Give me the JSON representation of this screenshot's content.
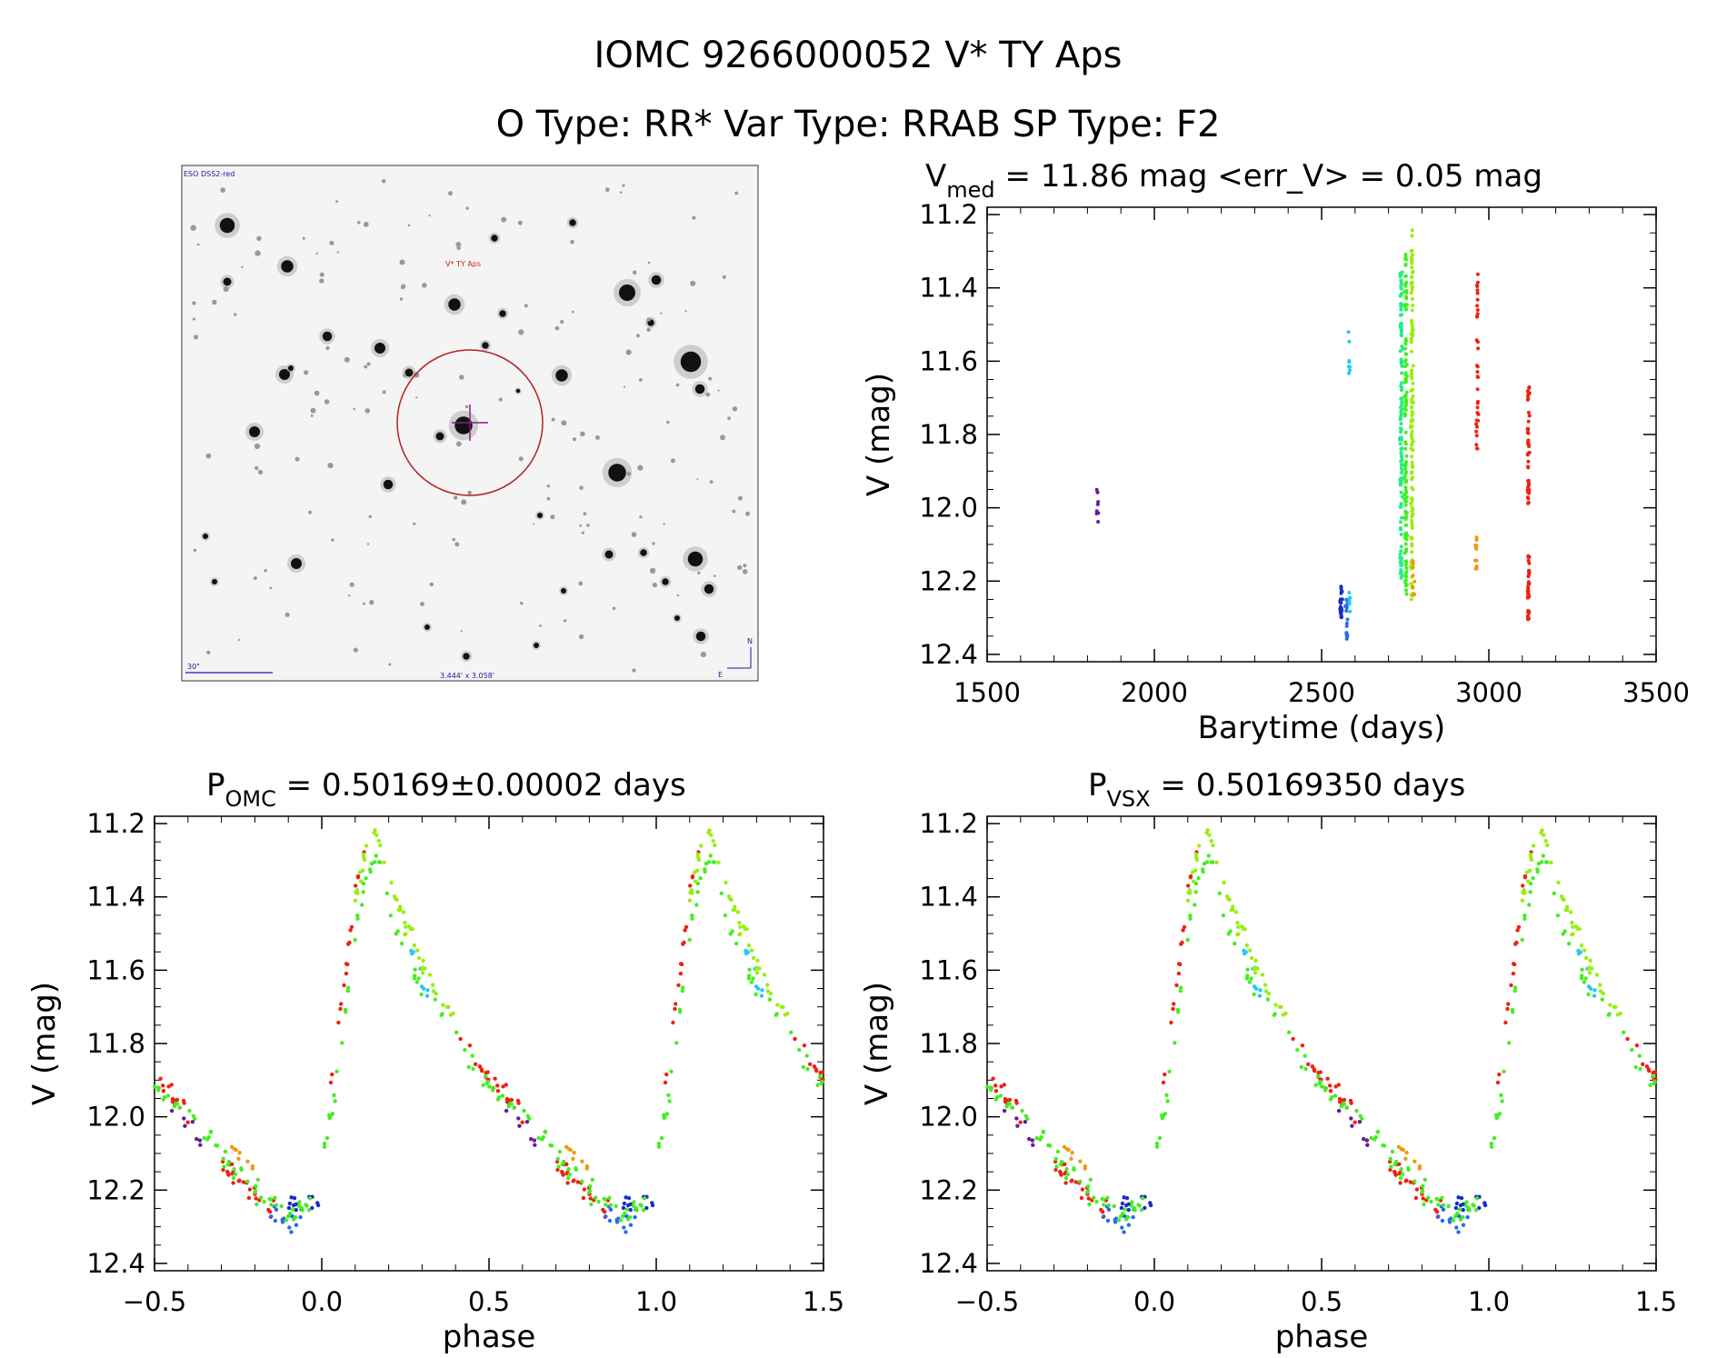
{
  "header": {
    "title_line1": "IOMC 9266000052    V* TY Aps",
    "title_line2": "O Type: RR*  Var Type: RRAB  SP Type: F2"
  },
  "finder": {
    "survey_label": "ESO DSS2-red",
    "target_label": "V* TY Aps",
    "scale_label": "30\"",
    "fov_label": "3.444' x 3.058'",
    "north_label": "N",
    "east_label": "E",
    "palette": {
      "star": "#111111",
      "circle": "#b22222",
      "cross": "#8b1a8b",
      "text": "#1a1aa0",
      "target_text": "#cc2222"
    }
  },
  "chart_data": [
    {
      "id": "lightcurve-time",
      "type": "scatter",
      "title_prefix": "V",
      "title_sub": "med",
      "title_suffix": " = 11.86 mag <err_V> = 0.05 mag",
      "xlabel": "Barytime (days)",
      "ylabel": "V (mag)",
      "xlim": [
        1500,
        3500
      ],
      "ylim": [
        12.42,
        11.18
      ],
      "xticks": [
        1500,
        2000,
        2500,
        3000,
        3500
      ],
      "xtick_labels": [
        "1500",
        "2000",
        "2500",
        "3000",
        "3500"
      ],
      "yticks": [
        11.2,
        11.4,
        11.6,
        11.8,
        12.0,
        12.2,
        12.4
      ],
      "ytick_labels": [
        "11.2",
        "11.4",
        "11.6",
        "11.8",
        "12.0",
        "12.2",
        "12.4"
      ],
      "clusters": [
        {
          "t": 1830,
          "v_min": 11.95,
          "v_max": 12.06,
          "n": 10,
          "color": "#6a1a9a"
        },
        {
          "t": 2558,
          "v_min": 12.2,
          "v_max": 12.3,
          "n": 22,
          "color": "#1a2acc"
        },
        {
          "t": 2575,
          "v_min": 12.24,
          "v_max": 12.36,
          "n": 16,
          "color": "#2a6aee"
        },
        {
          "t": 2582,
          "v_min": 11.52,
          "v_max": 11.64,
          "n": 8,
          "color": "#22ccee"
        },
        {
          "t": 2584,
          "v_min": 12.23,
          "v_max": 12.29,
          "n": 8,
          "color": "#22ccee"
        },
        {
          "t": 2738,
          "v_min": 11.35,
          "v_max": 12.21,
          "n": 120,
          "color": "#22ee88"
        },
        {
          "t": 2752,
          "v_min": 11.28,
          "v_max": 12.24,
          "n": 130,
          "color": "#44ee22"
        },
        {
          "t": 2770,
          "v_min": 11.24,
          "v_max": 12.26,
          "n": 130,
          "color": "#99ee11"
        },
        {
          "t": 2775,
          "v_min": 12.14,
          "v_max": 12.24,
          "n": 10,
          "color": "#ee9911"
        },
        {
          "t": 2962,
          "v_min": 12.08,
          "v_max": 12.17,
          "n": 14,
          "color": "#ee9911"
        },
        {
          "t": 2965,
          "v_min": 11.35,
          "v_max": 11.85,
          "n": 35,
          "color": "#ee2211"
        },
        {
          "t": 3118,
          "v_min": 11.66,
          "v_max": 12.0,
          "n": 45,
          "color": "#ee2211"
        },
        {
          "t": 3118,
          "v_min": 12.13,
          "v_max": 12.31,
          "n": 35,
          "color": "#ee2211"
        }
      ]
    },
    {
      "id": "phased-omc",
      "type": "scatter",
      "title_prefix": "P",
      "title_sub": "OMC",
      "title_suffix": " = 0.50169±0.00002 days",
      "xlabel": "phase",
      "ylabel": "V (mag)",
      "xlim": [
        -0.5,
        1.5
      ],
      "ylim": [
        12.42,
        11.18
      ],
      "xticks": [
        -0.5,
        0.0,
        0.5,
        1.0,
        1.5
      ],
      "xtick_labels": [
        "−0.5",
        "0.0",
        "0.5",
        "1.0",
        "1.5"
      ],
      "yticks": [
        11.2,
        11.4,
        11.6,
        11.8,
        12.0,
        12.2,
        12.4
      ],
      "ytick_labels": [
        "11.2",
        "11.4",
        "11.6",
        "11.8",
        "12.0",
        "12.2",
        "12.4"
      ],
      "light_curve_template": [
        [
          0.0,
          12.08
        ],
        [
          0.03,
          11.95
        ],
        [
          0.06,
          11.75
        ],
        [
          0.1,
          11.45
        ],
        [
          0.13,
          11.32
        ],
        [
          0.16,
          11.25
        ],
        [
          0.22,
          11.45
        ],
        [
          0.3,
          11.62
        ],
        [
          0.4,
          11.78
        ],
        [
          0.5,
          11.92
        ],
        [
          0.6,
          12.0
        ],
        [
          0.7,
          12.1
        ],
        [
          0.8,
          12.2
        ],
        [
          0.9,
          12.26
        ],
        [
          1.0,
          12.24
        ]
      ],
      "groups": [
        {
          "phase_min": 0.02,
          "phase_max": 0.13,
          "n": 18,
          "color": "#ee2211",
          "offset": -0.06
        },
        {
          "phase_min": 0.4,
          "phase_max": 0.6,
          "n": 26,
          "color": "#ee2211",
          "offset": -0.02
        },
        {
          "phase_min": 0.7,
          "phase_max": 0.86,
          "n": 24,
          "color": "#ee2211",
          "offset": 0.02
        },
        {
          "phase_min": 0.55,
          "phase_max": 0.64,
          "n": 8,
          "color": "#6a1a9a",
          "offset": 0.02
        },
        {
          "phase_min": 0.9,
          "phase_max": 0.99,
          "n": 14,
          "color": "#1a2acc",
          "offset": -0.01
        },
        {
          "phase_min": 0.84,
          "phase_max": 0.95,
          "n": 12,
          "color": "#2a6aee",
          "offset": 0.04
        },
        {
          "phase_min": 0.26,
          "phase_max": 0.32,
          "n": 8,
          "color": "#22ccee",
          "offset": 0.01
        },
        {
          "phase_min": 0.0,
          "phase_max": 0.3,
          "n": 40,
          "color": "#44ee22",
          "offset": 0.04
        },
        {
          "phase_min": 0.3,
          "phase_max": 1.0,
          "n": 70,
          "color": "#44ee22",
          "offset": 0.0
        },
        {
          "phase_min": 0.1,
          "phase_max": 0.4,
          "n": 50,
          "color": "#99ee11",
          "offset": -0.04
        },
        {
          "phase_min": 0.72,
          "phase_max": 0.8,
          "n": 8,
          "color": "#ee9911",
          "offset": -0.05
        }
      ]
    },
    {
      "id": "phased-vsx",
      "type": "scatter",
      "title_prefix": "P",
      "title_sub": "VSX",
      "title_suffix": " = 0.50169350 days",
      "xlabel": "phase",
      "ylabel": "V (mag)",
      "xlim": [
        -0.5,
        1.5
      ],
      "ylim": [
        12.42,
        11.18
      ],
      "xticks": [
        -0.5,
        0.0,
        0.5,
        1.0,
        1.5
      ],
      "xtick_labels": [
        "−0.5",
        "0.0",
        "0.5",
        "1.0",
        "1.5"
      ],
      "yticks": [
        11.2,
        11.4,
        11.6,
        11.8,
        12.0,
        12.2,
        12.4
      ],
      "ytick_labels": [
        "11.2",
        "11.4",
        "11.6",
        "11.8",
        "12.0",
        "12.2",
        "12.4"
      ],
      "light_curve_template": [
        [
          0.0,
          12.08
        ],
        [
          0.03,
          11.95
        ],
        [
          0.06,
          11.75
        ],
        [
          0.1,
          11.45
        ],
        [
          0.13,
          11.32
        ],
        [
          0.16,
          11.25
        ],
        [
          0.22,
          11.45
        ],
        [
          0.3,
          11.62
        ],
        [
          0.4,
          11.78
        ],
        [
          0.5,
          11.92
        ],
        [
          0.6,
          12.0
        ],
        [
          0.7,
          12.1
        ],
        [
          0.8,
          12.2
        ],
        [
          0.9,
          12.26
        ],
        [
          1.0,
          12.24
        ]
      ],
      "groups": [
        {
          "phase_min": 0.02,
          "phase_max": 0.13,
          "n": 18,
          "color": "#ee2211",
          "offset": -0.06
        },
        {
          "phase_min": 0.4,
          "phase_max": 0.6,
          "n": 26,
          "color": "#ee2211",
          "offset": -0.02
        },
        {
          "phase_min": 0.7,
          "phase_max": 0.86,
          "n": 24,
          "color": "#ee2211",
          "offset": 0.02
        },
        {
          "phase_min": 0.55,
          "phase_max": 0.64,
          "n": 8,
          "color": "#6a1a9a",
          "offset": 0.02
        },
        {
          "phase_min": 0.9,
          "phase_max": 0.99,
          "n": 14,
          "color": "#1a2acc",
          "offset": -0.01
        },
        {
          "phase_min": 0.84,
          "phase_max": 0.95,
          "n": 12,
          "color": "#2a6aee",
          "offset": 0.04
        },
        {
          "phase_min": 0.26,
          "phase_max": 0.32,
          "n": 8,
          "color": "#22ccee",
          "offset": 0.01
        },
        {
          "phase_min": 0.0,
          "phase_max": 0.3,
          "n": 40,
          "color": "#44ee22",
          "offset": 0.04
        },
        {
          "phase_min": 0.3,
          "phase_max": 1.0,
          "n": 70,
          "color": "#44ee22",
          "offset": 0.0
        },
        {
          "phase_min": 0.1,
          "phase_max": 0.4,
          "n": 50,
          "color": "#99ee11",
          "offset": -0.04
        },
        {
          "phase_min": 0.72,
          "phase_max": 0.8,
          "n": 8,
          "color": "#ee9911",
          "offset": -0.05
        }
      ]
    }
  ]
}
